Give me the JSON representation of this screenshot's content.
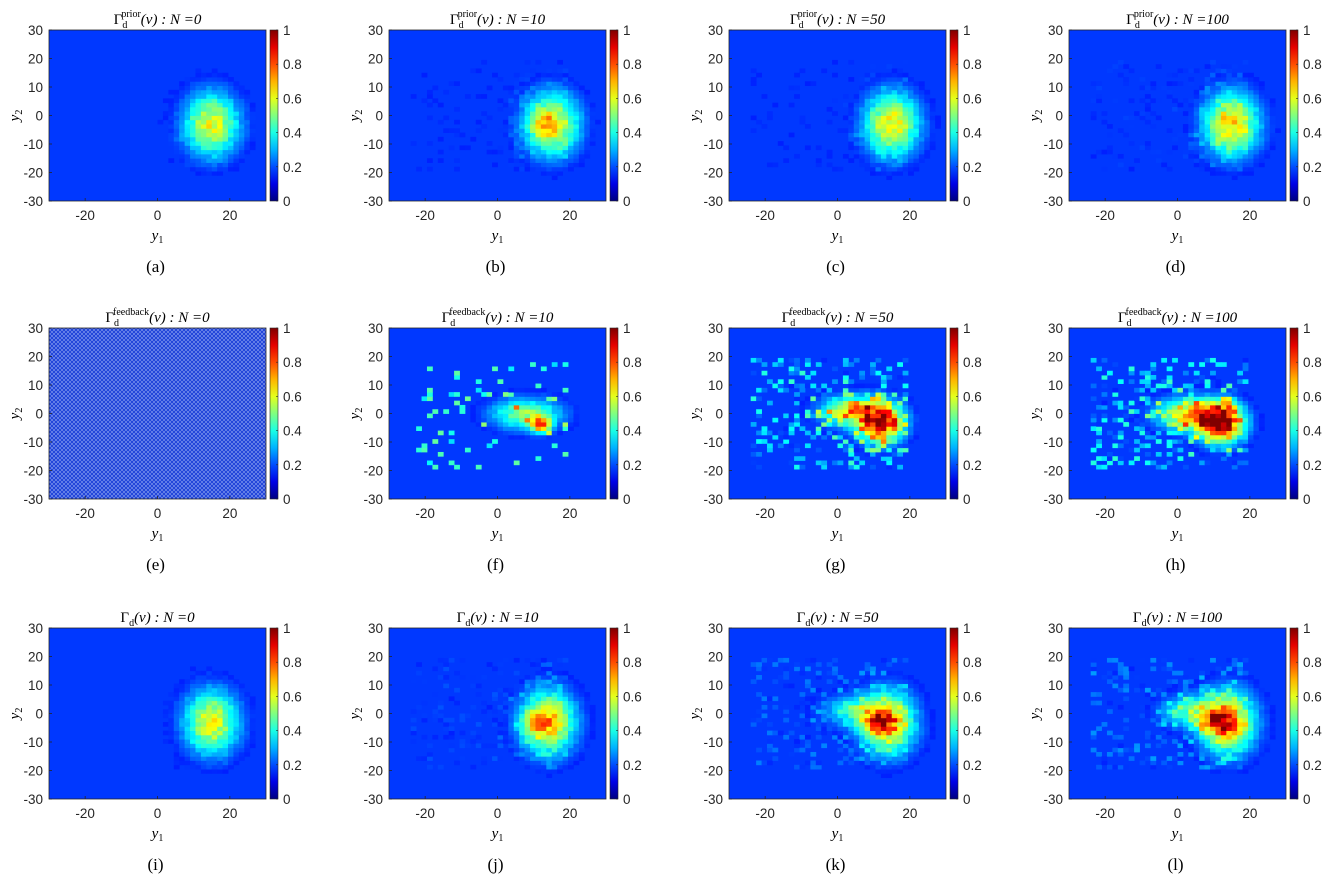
{
  "colorbar": {
    "colormap": "jet",
    "range": [
      0,
      1
    ],
    "tick_labels": [
      "0",
      "0.2",
      "0.4",
      "0.6",
      "0.8",
      "1"
    ]
  },
  "axes": {
    "xlabel": "y1",
    "ylabel": "y2",
    "xlim": [
      -30,
      30
    ],
    "ylim": [
      -30,
      30
    ],
    "x_tick_labels": [
      "-20",
      "0",
      "20"
    ],
    "y_tick_labels": [
      "30",
      "20",
      "10",
      "0",
      "-10",
      "-20",
      "-30"
    ]
  },
  "chart_data": [
    {
      "type": "heatmap",
      "caption": "(a)",
      "quantity": "prior",
      "N": "0",
      "title": "Γd^prior(v) : N =0",
      "background": "#0a2ed6",
      "blobs": [
        {
          "x": 15,
          "y": -3,
          "sx": 5.5,
          "sy": 8,
          "amp": 0.55
        }
      ],
      "scatter_amp": 0.03,
      "seed": 11
    },
    {
      "type": "heatmap",
      "caption": "(b)",
      "quantity": "prior",
      "N": "10",
      "title": "Γd^prior(v) : N =10",
      "background": "#0a2ed6",
      "blobs": [
        {
          "x": 15,
          "y": -3,
          "sx": 5.5,
          "sy": 8,
          "amp": 0.58
        },
        {
          "x": 12,
          "y": -3,
          "sx": 2.5,
          "sy": 3,
          "amp": 0.12
        }
      ],
      "scatter_amp": 0.06,
      "seed": 12
    },
    {
      "type": "heatmap",
      "caption": "(c)",
      "quantity": "prior",
      "N": "50",
      "title": "Γd^prior(v) : N =50",
      "background": "#0a2ed6",
      "blobs": [
        {
          "x": 15,
          "y": -3,
          "sx": 5.5,
          "sy": 8,
          "amp": 0.58
        }
      ],
      "scatter_amp": 0.06,
      "seed": 13
    },
    {
      "type": "heatmap",
      "caption": "(d)",
      "quantity": "prior",
      "N": "100",
      "title": "Γd^prior(v) : N =100",
      "background": "#0a2ed6",
      "blobs": [
        {
          "x": 15,
          "y": -3,
          "sx": 5.5,
          "sy": 8,
          "amp": 0.6
        }
      ],
      "scatter_amp": 0.08,
      "seed": 14
    },
    {
      "type": "heatmap",
      "caption": "(e)",
      "quantity": "feedback",
      "N": "0",
      "title": "Γd^feedback(v) : N =0",
      "background": "#0a2ed6",
      "blobs": [],
      "scatter_amp": 0,
      "mesh": true,
      "seed": 15
    },
    {
      "type": "heatmap",
      "caption": "(f)",
      "quantity": "feedback",
      "N": "10",
      "title": "Γd^feedback(v) : N =10",
      "background": "#0a2ed6",
      "blobs": [
        {
          "x": 8,
          "y": 0,
          "sx": 7,
          "sy": 4,
          "amp": 0.45
        },
        {
          "x": 12,
          "y": -4,
          "sx": 2,
          "sy": 2,
          "amp": 0.6
        }
      ],
      "scatter_amp": 0.4,
      "sparse": true,
      "seed": 16
    },
    {
      "type": "heatmap",
      "caption": "(g)",
      "quantity": "feedback",
      "N": "50",
      "title": "Γd^feedback(v) : N =50",
      "background": "#0a2ed6",
      "blobs": [
        {
          "x": 12,
          "y": -3,
          "sx": 4.5,
          "sy": 5,
          "amp": 0.85
        },
        {
          "x": 3,
          "y": 1,
          "sx": 6,
          "sy": 4,
          "amp": 0.45
        }
      ],
      "scatter_amp": 0.35,
      "seed": 17
    },
    {
      "type": "heatmap",
      "caption": "(h)",
      "quantity": "feedback",
      "N": "100",
      "title": "Γd^feedback(v) : N =100",
      "background": "#0a2ed6",
      "blobs": [
        {
          "x": 12,
          "y": -3,
          "sx": 4.5,
          "sy": 5,
          "amp": 0.95
        },
        {
          "x": 2,
          "y": 0,
          "sx": 6,
          "sy": 4,
          "amp": 0.55
        }
      ],
      "scatter_amp": 0.35,
      "seed": 18
    },
    {
      "type": "heatmap",
      "caption": "(i)",
      "quantity": "total",
      "N": "0",
      "title": "Γd(v) : N =0",
      "background": "#0a2ed6",
      "blobs": [
        {
          "x": 15,
          "y": -3,
          "sx": 5.5,
          "sy": 8,
          "amp": 0.55
        }
      ],
      "scatter_amp": 0.03,
      "seed": 19
    },
    {
      "type": "heatmap",
      "caption": "(j)",
      "quantity": "total",
      "N": "10",
      "title": "Γd(v) : N =10",
      "background": "#0a2ed6",
      "blobs": [
        {
          "x": 14,
          "y": -3,
          "sx": 5.5,
          "sy": 8,
          "amp": 0.6
        },
        {
          "x": 11,
          "y": -3,
          "sx": 3,
          "sy": 3,
          "amp": 0.2
        }
      ],
      "scatter_amp": 0.1,
      "seed": 20
    },
    {
      "type": "heatmap",
      "caption": "(k)",
      "quantity": "total",
      "N": "50",
      "title": "Γd(v) : N =50",
      "background": "#0a2ed6",
      "blobs": [
        {
          "x": 14,
          "y": -3,
          "sx": 5.5,
          "sy": 8,
          "amp": 0.6
        },
        {
          "x": 11,
          "y": -3,
          "sx": 3,
          "sy": 3,
          "amp": 0.35
        },
        {
          "x": 3,
          "y": 1,
          "sx": 6,
          "sy": 4,
          "amp": 0.25
        }
      ],
      "scatter_amp": 0.15,
      "seed": 21
    },
    {
      "type": "heatmap",
      "caption": "(l)",
      "quantity": "total",
      "N": "100",
      "title": "Γd(v) : N =100",
      "background": "#0a2ed6",
      "blobs": [
        {
          "x": 14,
          "y": -3,
          "sx": 5.5,
          "sy": 8,
          "amp": 0.62
        },
        {
          "x": 11,
          "y": -3,
          "sx": 3,
          "sy": 3,
          "amp": 0.4
        },
        {
          "x": 3,
          "y": 1,
          "sx": 6,
          "sy": 4,
          "amp": 0.3
        }
      ],
      "scatter_amp": 0.18,
      "seed": 22
    }
  ]
}
